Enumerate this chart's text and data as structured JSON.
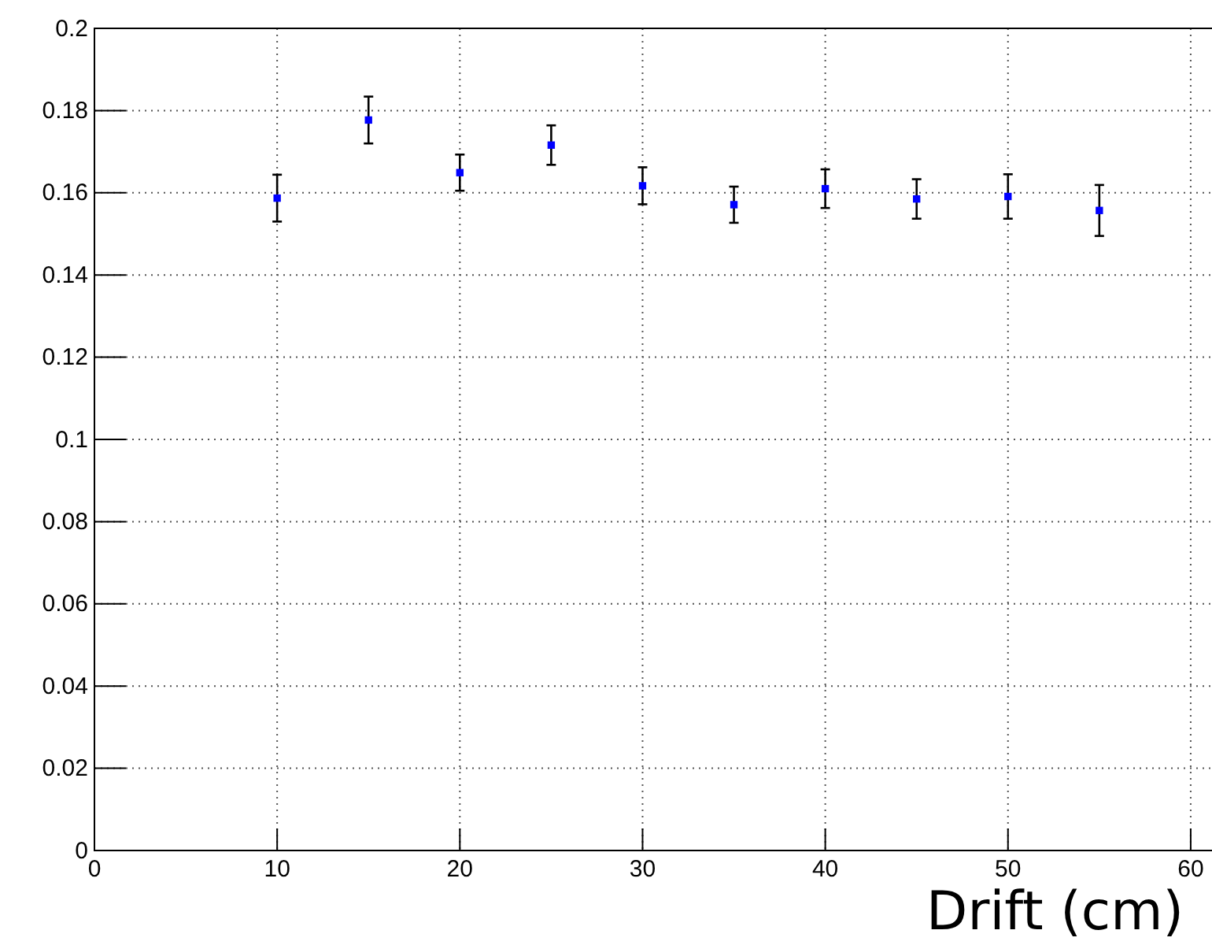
{
  "chart_data": {
    "type": "scatter",
    "xlabel": "Drift (cm)",
    "x": [
      10,
      15,
      20,
      25,
      30,
      35,
      40,
      45,
      50,
      55
    ],
    "series": [
      {
        "color": "#0000ff",
        "values": [
          0.1587,
          0.1777,
          0.1649,
          0.1716,
          0.1617,
          0.1571,
          0.161,
          0.1585,
          0.1591,
          0.1557
        ],
        "errors": [
          0.0057,
          0.0057,
          0.0044,
          0.0048,
          0.0045,
          0.0044,
          0.0047,
          0.0048,
          0.0054,
          0.0062
        ]
      }
    ],
    "xlim": [
      0,
      62.2
    ],
    "xticks": [
      0,
      10,
      20,
      30,
      40,
      50,
      60
    ],
    "ylim": [
      0,
      0.2
    ],
    "yticks": [
      0,
      0.02,
      0.04,
      0.06,
      0.08,
      0.1,
      0.12,
      0.14,
      0.16,
      0.18,
      0.2
    ],
    "grid": true,
    "marker": "square"
  }
}
